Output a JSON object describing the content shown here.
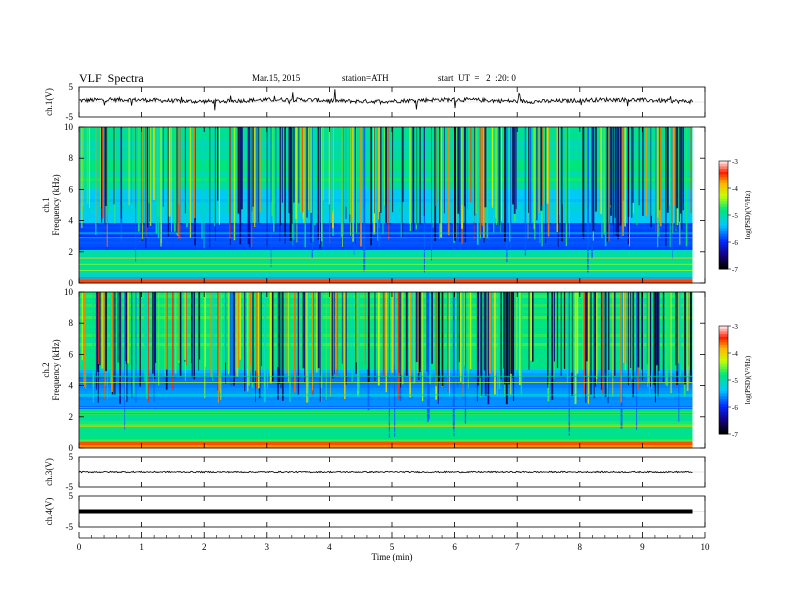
{
  "header": {
    "title": "VLF  Spectra",
    "date": "Mar.15, 2015",
    "station": "station=ATH",
    "start": "start  UT  =   2  :20: 0"
  },
  "chart_data": [
    {
      "type": "line",
      "panel": "ch1",
      "ylabel": "ch.1(V)",
      "ylim": [
        -5,
        5
      ],
      "yticks": [
        "5",
        "-5"
      ],
      "xlim": [
        0,
        10
      ],
      "series": [
        {
          "values_mean": 0.5,
          "noise": "high"
        }
      ]
    },
    {
      "type": "heatmap",
      "panel": "spec1",
      "ylabel_top": "ch.1",
      "ylabel": "Frequency  (kHz)",
      "ylim": [
        0,
        10
      ],
      "yticks": [
        "0",
        "2",
        "4",
        "6",
        "8",
        "10"
      ],
      "xlim": [
        0,
        9.8
      ],
      "colorbar": {
        "label": "log(PSD)(V²/Hz)",
        "range": [
          -7,
          -3
        ],
        "ticks": [
          "-3",
          "-4",
          "-5",
          "-6",
          "-7"
        ]
      }
    },
    {
      "type": "heatmap",
      "panel": "spec2",
      "ylabel_top": "ch.2",
      "ylabel": "Frequency  (kHz)",
      "ylim": [
        0,
        10
      ],
      "yticks": [
        "0",
        "2",
        "4",
        "6",
        "8",
        "10"
      ],
      "xlim": [
        0,
        9.8
      ],
      "colorbar": {
        "label": "log(PSD)(V²/Hz)",
        "range": [
          -7,
          -3
        ],
        "ticks": [
          "-3",
          "-4",
          "-5",
          "-6",
          "-7"
        ]
      }
    },
    {
      "type": "line",
      "panel": "ch3",
      "ylabel": "ch.3(V)",
      "ylim": [
        -5,
        5
      ],
      "yticks": [
        "5",
        "-5"
      ],
      "series": [
        {
          "values_mean": 0,
          "noise": "low"
        }
      ]
    },
    {
      "type": "line",
      "panel": "ch4",
      "ylabel": "ch.4(V)",
      "ylim": [
        -5,
        5
      ],
      "yticks": [
        "5",
        "-5"
      ],
      "series": [
        {
          "values_mean": 0,
          "noise": "flat"
        }
      ]
    }
  ],
  "xaxis": {
    "label": "Time  (min)",
    "ticks": [
      "0",
      "1",
      "2",
      "3",
      "4",
      "5",
      "6",
      "7",
      "8",
      "9",
      "10"
    ],
    "range": [
      0,
      10
    ]
  }
}
